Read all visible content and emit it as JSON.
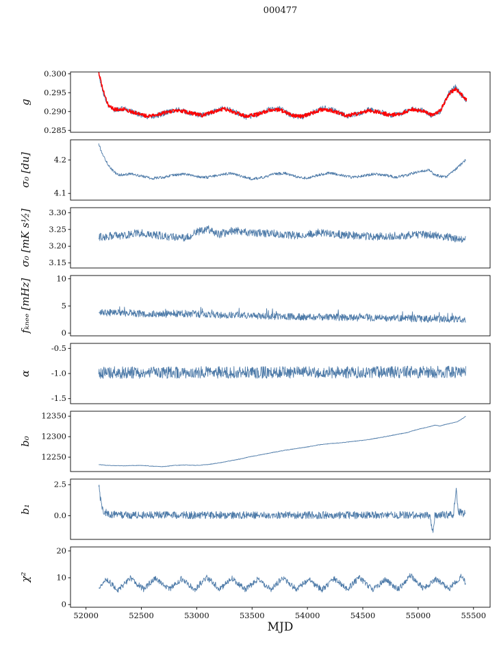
{
  "chart_data": {
    "type": "line",
    "title": "000477",
    "xlabel": "MJD",
    "xlim": [
      51860,
      55650
    ],
    "xticks": [
      {
        "v": 52000,
        "label": "52000"
      },
      {
        "v": 52500,
        "label": "52500"
      },
      {
        "v": 53000,
        "label": "53000"
      },
      {
        "v": 53500,
        "label": "53500"
      },
      {
        "v": 54000,
        "label": "54000"
      },
      {
        "v": 54500,
        "label": "54500"
      },
      {
        "v": 55000,
        "label": "55000"
      },
      {
        "v": 55500,
        "label": "55500"
      }
    ],
    "panels": [
      {
        "ylabel": "g",
        "ylim": [
          0.2845,
          0.3005
        ],
        "yticks": [
          {
            "v": 0.3,
            "label": "0.300"
          },
          {
            "v": 0.295,
            "label": "0.295"
          },
          {
            "v": 0.29,
            "label": "0.290"
          },
          {
            "v": 0.285,
            "label": "0.285"
          }
        ],
        "series": [
          {
            "name": "g-blue",
            "color": "#4d7aa8",
            "width": 0.9,
            "noise": 0.0007,
            "x": [
              52115,
              52150,
              52200,
              52250,
              52350,
              52450,
              52550,
              52650,
              52750,
              52850,
              52950,
              53050,
              53150,
              53250,
              53350,
              53450,
              53550,
              53650,
              53750,
              53850,
              53950,
              54050,
              54150,
              54250,
              54350,
              54450,
              54550,
              54650,
              54750,
              54850,
              54950,
              55050,
              55120,
              55200,
              55280,
              55340,
              55400,
              55440
            ],
            "y": [
              0.3,
              0.2955,
              0.2915,
              0.2905,
              0.2908,
              0.2895,
              0.2885,
              0.289,
              0.29,
              0.2905,
              0.2895,
              0.289,
              0.29,
              0.291,
              0.2898,
              0.2885,
              0.2892,
              0.2905,
              0.2908,
              0.289,
              0.2885,
              0.2898,
              0.291,
              0.2902,
              0.2888,
              0.2893,
              0.2905,
              0.29,
              0.289,
              0.2895,
              0.2908,
              0.2902,
              0.289,
              0.29,
              0.295,
              0.2965,
              0.294,
              0.293
            ]
          },
          {
            "name": "g-red",
            "color": "#ff0000",
            "width": 1.5,
            "noise": 0.0005,
            "x": [
              52115,
              52150,
              52200,
              52250,
              52350,
              52450,
              52550,
              52650,
              52750,
              52850,
              52950,
              53050,
              53150,
              53250,
              53350,
              53450,
              53550,
              53650,
              53750,
              53850,
              53950,
              54050,
              54150,
              54250,
              54350,
              54450,
              54550,
              54650,
              54750,
              54850,
              54950,
              55050,
              55120,
              55200,
              55280,
              55340,
              55400,
              55440
            ],
            "y": [
              0.3005,
              0.296,
              0.2918,
              0.2906,
              0.2906,
              0.2896,
              0.2888,
              0.2892,
              0.29,
              0.2903,
              0.2896,
              0.289,
              0.2899,
              0.2907,
              0.2897,
              0.2887,
              0.2893,
              0.2903,
              0.2905,
              0.2891,
              0.2887,
              0.2897,
              0.2907,
              0.29,
              0.2889,
              0.2894,
              0.2903,
              0.2898,
              0.289,
              0.2896,
              0.2906,
              0.29,
              0.2891,
              0.2902,
              0.2948,
              0.296,
              0.2942,
              0.2932
            ]
          }
        ]
      },
      {
        "ylabel": "σ₀ [du]",
        "ylim": [
          4.08,
          4.26
        ],
        "yticks": [
          {
            "v": 4.2,
            "label": "4.2"
          },
          {
            "v": 4.1,
            "label": "4.1"
          }
        ],
        "series": [
          {
            "name": "sigma0-du",
            "color": "#4d7aa8",
            "width": 0.9,
            "noise": 0.004,
            "x": [
              52115,
              52150,
              52200,
              52250,
              52300,
              52400,
              52500,
              52600,
              52700,
              52800,
              52900,
              53000,
              53100,
              53200,
              53300,
              53400,
              53500,
              53600,
              53700,
              53800,
              53900,
              54000,
              54100,
              54200,
              54300,
              54400,
              54500,
              54600,
              54700,
              54800,
              54900,
              55000,
              55100,
              55150,
              55250,
              55350,
              55430
            ],
            "y": [
              4.247,
              4.215,
              4.185,
              4.165,
              4.155,
              4.158,
              4.152,
              4.145,
              4.148,
              4.155,
              4.158,
              4.15,
              4.148,
              4.155,
              4.16,
              4.152,
              4.143,
              4.148,
              4.158,
              4.16,
              4.15,
              4.145,
              4.155,
              4.162,
              4.155,
              4.148,
              4.152,
              4.158,
              4.155,
              4.148,
              4.155,
              4.165,
              4.17,
              4.155,
              4.148,
              4.175,
              4.2
            ]
          }
        ]
      },
      {
        "ylabel": "σ₀ [mK s½]",
        "ylim": [
          3.135,
          3.315
        ],
        "yticks": [
          {
            "v": 3.3,
            "label": "3.30"
          },
          {
            "v": 3.25,
            "label": "3.25"
          },
          {
            "v": 3.2,
            "label": "3.20"
          },
          {
            "v": 3.15,
            "label": "3.15"
          }
        ],
        "series": [
          {
            "name": "sigma0-mk",
            "color": "#4d7aa8",
            "width": 0.9,
            "noise": 0.012,
            "x": [
              52115,
              52300,
              52500,
              52700,
              52900,
              53000,
              53100,
              53200,
              53350,
              53500,
              53700,
              53900,
              54100,
              54300,
              54500,
              54700,
              54900,
              55100,
              55250,
              55430
            ],
            "y": [
              3.228,
              3.232,
              3.24,
              3.23,
              3.225,
              3.243,
              3.252,
              3.235,
              3.248,
              3.24,
              3.238,
              3.232,
              3.24,
              3.235,
              3.23,
              3.228,
              3.233,
              3.235,
              3.228,
              3.22
            ]
          }
        ]
      },
      {
        "ylabel": "fₖₙₑₑ [mHz]",
        "ylim": [
          -0.5,
          10.6
        ],
        "yticks": [
          {
            "v": 10,
            "label": "10"
          },
          {
            "v": 5,
            "label": "5"
          },
          {
            "v": 0,
            "label": "0"
          }
        ],
        "series": [
          {
            "name": "fknee",
            "color": "#4d7aa8",
            "width": 0.9,
            "noise": 0.65,
            "spike": {
              "p": 0.05,
              "mult": 2.2
            },
            "x": [
              52115,
              52300,
              52500,
              52700,
              52900,
              53100,
              53300,
              53500,
              53700,
              53900,
              54100,
              54300,
              54500,
              54700,
              54900,
              55100,
              55250,
              55430
            ],
            "y": [
              3.8,
              3.7,
              3.6,
              3.5,
              3.6,
              3.4,
              3.3,
              3.2,
              3.1,
              3.0,
              3.0,
              2.9,
              2.8,
              2.8,
              2.7,
              2.6,
              2.6,
              2.5
            ]
          }
        ]
      },
      {
        "ylabel": "α",
        "ylim": [
          -1.6,
          -0.4
        ],
        "yticks": [
          {
            "v": -0.5,
            "label": "-0.5"
          },
          {
            "v": -1.0,
            "label": "-1.0"
          },
          {
            "v": -1.5,
            "label": "-1.5"
          }
        ],
        "series": [
          {
            "name": "alpha",
            "color": "#4d7aa8",
            "width": 0.9,
            "noise": 0.12,
            "x": [
              52115,
              55430
            ],
            "y": [
              -0.98,
              -0.97
            ]
          }
        ]
      },
      {
        "ylabel": "b₀",
        "ylim": [
          12215,
          12362
        ],
        "yticks": [
          {
            "v": 12350,
            "label": "12350"
          },
          {
            "v": 12300,
            "label": "12300"
          },
          {
            "v": 12250,
            "label": "12250"
          }
        ],
        "series": [
          {
            "name": "b0",
            "color": "#4d7aa8",
            "width": 0.9,
            "noise": 0.6,
            "x": [
              52115,
              52200,
              52350,
              52500,
              52600,
              52700,
              52800,
              52900,
              53000,
              53100,
              53200,
              53300,
              53400,
              53500,
              53600,
              53700,
              53800,
              53900,
              54000,
              54100,
              54200,
              54300,
              54400,
              54500,
              54600,
              54700,
              54800,
              54900,
              55000,
              55050,
              55100,
              55150,
              55200,
              55250,
              55300,
              55350,
              55400,
              55430
            ],
            "y": [
              12232,
              12230,
              12229,
              12230,
              12228,
              12227,
              12230,
              12231,
              12230,
              12232,
              12236,
              12241,
              12246,
              12252,
              12257,
              12262,
              12267,
              12271,
              12275,
              12280,
              12283,
              12285,
              12288,
              12291,
              12295,
              12300,
              12305,
              12310,
              12318,
              12321,
              12324,
              12328,
              12326,
              12330,
              12333,
              12336,
              12344,
              12350
            ]
          }
        ]
      },
      {
        "ylabel": "b₁",
        "ylim": [
          -1.9,
          2.95
        ],
        "yticks": [
          {
            "v": 2.5,
            "label": "2.5"
          },
          {
            "v": 0.0,
            "label": "0.0"
          }
        ],
        "series": [
          {
            "name": "b1",
            "color": "#4d7aa8",
            "width": 0.9,
            "noise": 0.3,
            "x": [
              52115,
              52130,
              52155,
              52200,
              52400,
              53000,
              54000,
              55000,
              55110,
              55130,
              55150,
              55200,
              55320,
              55345,
              55360,
              55430
            ],
            "y": [
              2.6,
              1.3,
              0.45,
              0.1,
              0.05,
              0.05,
              0.05,
              0.05,
              0.0,
              -1.4,
              0.0,
              0.05,
              0.1,
              2.4,
              0.3,
              0.15
            ]
          }
        ]
      },
      {
        "ylabel": "χ²",
        "ylim": [
          -1,
          21.5
        ],
        "yticks": [
          {
            "v": 20,
            "label": "20"
          },
          {
            "v": 10,
            "label": "10"
          },
          {
            "v": 0,
            "label": "0"
          }
        ],
        "series": [
          {
            "name": "chi2",
            "color": "#4d7aa8",
            "width": 0.9,
            "noise": 1.1,
            "x": [
              52115,
              52180,
              52290,
              52400,
              52520,
              52630,
              52750,
              52860,
              52980,
              53090,
              53210,
              53320,
              53440,
              53550,
              53670,
              53780,
              53900,
              54010,
              54130,
              54240,
              54360,
              54470,
              54590,
              54700,
              54820,
              54930,
              55050,
              55160,
              55280,
              55390,
              55430
            ],
            "y": [
              6.0,
              9.5,
              5.5,
              9.8,
              5.8,
              10.0,
              5.5,
              9.6,
              5.6,
              10.2,
              5.8,
              9.8,
              5.5,
              9.5,
              5.8,
              10.0,
              5.6,
              9.4,
              5.5,
              9.6,
              5.8,
              10.0,
              5.5,
              9.3,
              5.6,
              11.0,
              6.0,
              9.5,
              5.8,
              10.5,
              8.0
            ]
          }
        ]
      }
    ]
  }
}
